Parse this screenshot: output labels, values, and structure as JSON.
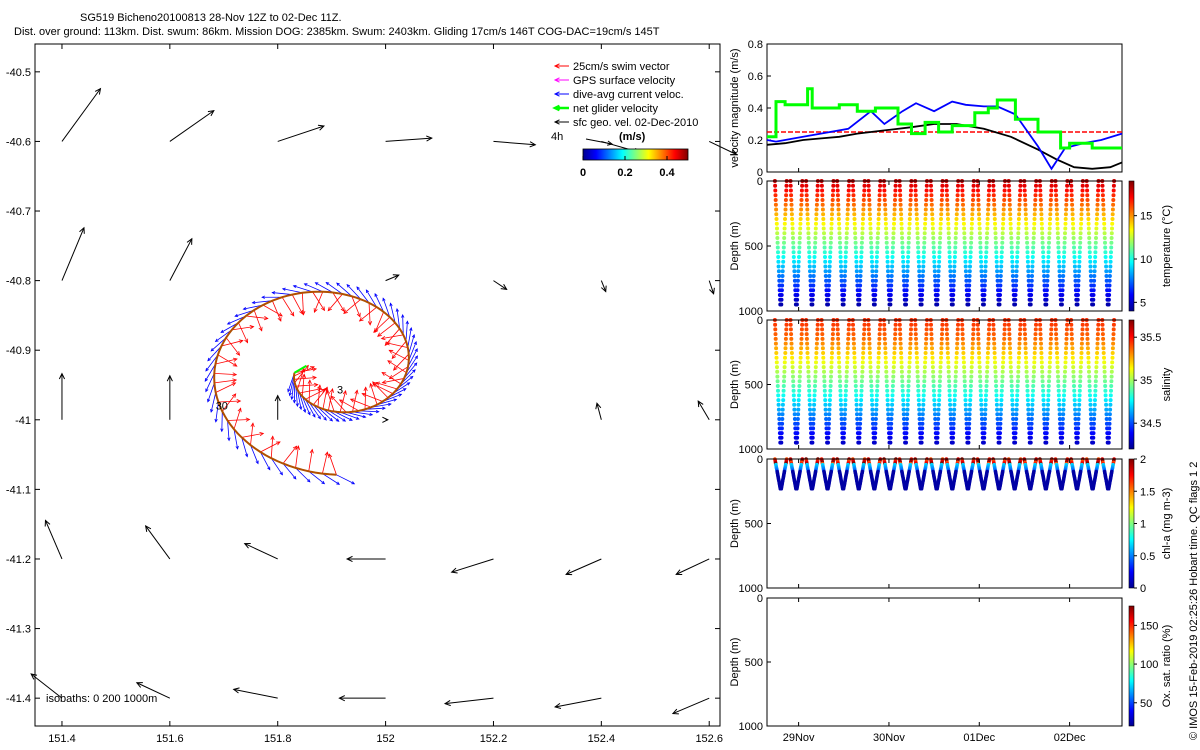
{
  "header": {
    "title_line1": "SG519 Bicheno20100813 28-Nov 12Z to 02-Dec 11Z.",
    "title_line2": "Dist. over ground: 113km. Dist. swum: 86km. Mission DOG: 2385km. Swum: 2403km. Gliding 17cm/s 146T COG-DAC=19cm/s 145T"
  },
  "footer": {
    "credit": "© IMOS 15-Feb-2019 02:25:26 Hobart time. QC flags 1  2"
  },
  "colors": {
    "swim": "#ff0000",
    "gps": "#ff00ff",
    "dac": "#0000ff",
    "net": "#00ff00",
    "sfc": "#000000",
    "track": "#b05000",
    "ref_line": "#ff0000"
  },
  "chart_data": [
    {
      "id": "map",
      "type": "scatter",
      "xlim": [
        151.35,
        152.62
      ],
      "ylim": [
        -41.44,
        -40.46
      ],
      "x_ticks": [
        151.4,
        151.6,
        151.8,
        152,
        152.2,
        152.4,
        152.6
      ],
      "x_tick_labels": [
        "151.4",
        "151.6",
        "151.8",
        "152",
        "152.2",
        "152.4",
        "152.6"
      ],
      "y_ticks": [
        -40.5,
        -40.6,
        -40.7,
        -40.8,
        -40.9,
        -41,
        -41.1,
        -41.2,
        -41.3,
        -41.4
      ],
      "y_tick_labels": [
        "-40.5",
        "-40.6",
        "-40.7",
        "-40.8",
        "-40.9",
        "-41",
        "-41.1",
        "-41.2",
        "-41.3",
        "-41.4"
      ],
      "legend": [
        {
          "label": "25cm/s swim vector",
          "color": "#ff0000"
        },
        {
          "label": "GPS surface velocity",
          "color": "#ff00ff"
        },
        {
          "label": "dive-avg current veloc.",
          "color": "#0000ff"
        },
        {
          "label": "net glider velocity",
          "color": "#00ff00"
        },
        {
          "label": "sfc geo. vel. 02-Dec-2010",
          "color": "#000000"
        }
      ],
      "legend_scale_label": "4h",
      "legend_scale_unit": "(m/s)",
      "colorbar": {
        "ticks": [
          "0",
          "0.2",
          "0.4"
        ],
        "range": [
          0,
          0.5
        ]
      },
      "isobath_label": "isobaths: 0   200   1000m",
      "day_labels": [
        {
          "text": "30",
          "lon": 151.685,
          "lat": -40.985
        },
        {
          "text": "3",
          "lon": 151.91,
          "lat": -40.962
        }
      ],
      "track_spiral": {
        "center_lon": 151.9,
        "center_lat": -40.925,
        "start_angle_deg": 190,
        "end_angle_deg": 632,
        "start_radius_deg_lon": 0.07,
        "end_radius_deg_lon": 0.255
      },
      "sfc_vectors": [
        {
          "lon": 151.4,
          "lat": -40.6,
          "u": 0.35,
          "v": 0.48
        },
        {
          "lon": 151.6,
          "lat": -40.6,
          "u": 0.4,
          "v": 0.28
        },
        {
          "lon": 151.8,
          "lat": -40.6,
          "u": 0.42,
          "v": 0.14
        },
        {
          "lon": 152,
          "lat": -40.6,
          "u": 0.42,
          "v": 0.03
        },
        {
          "lon": 152.2,
          "lat": -40.6,
          "u": 0.38,
          "v": -0.03
        },
        {
          "lon": 152.4,
          "lat": -40.6,
          "u": 0.35,
          "v": -0.1
        },
        {
          "lon": 152.6,
          "lat": -40.6,
          "u": 0.25,
          "v": -0.12
        },
        {
          "lon": 151.4,
          "lat": -40.8,
          "u": 0.2,
          "v": 0.48
        },
        {
          "lon": 151.6,
          "lat": -40.8,
          "u": 0.2,
          "v": 0.38
        },
        {
          "lon": 152,
          "lat": -40.8,
          "u": 0.12,
          "v": 0.05
        },
        {
          "lon": 152.2,
          "lat": -40.8,
          "u": 0.12,
          "v": -0.08
        },
        {
          "lon": 152.4,
          "lat": -40.8,
          "u": 0.04,
          "v": -0.1
        },
        {
          "lon": 152.6,
          "lat": -40.8,
          "u": 0.04,
          "v": -0.12
        },
        {
          "lon": 151.4,
          "lat": -41.0,
          "u": 0.0,
          "v": 0.42
        },
        {
          "lon": 151.6,
          "lat": -41.0,
          "u": 0.0,
          "v": 0.4
        },
        {
          "lon": 151.8,
          "lat": -41.0,
          "u": 0.0,
          "v": 0.22
        },
        {
          "lon": 152,
          "lat": -41.0,
          "u": 0.02,
          "v": 0.0
        },
        {
          "lon": 152.4,
          "lat": -41.0,
          "u": -0.04,
          "v": 0.15
        },
        {
          "lon": 152.6,
          "lat": -41.0,
          "u": -0.1,
          "v": 0.17
        },
        {
          "lon": 151.4,
          "lat": -41.2,
          "u": -0.15,
          "v": 0.35
        },
        {
          "lon": 151.6,
          "lat": -41.2,
          "u": -0.22,
          "v": 0.3
        },
        {
          "lon": 151.8,
          "lat": -41.2,
          "u": -0.3,
          "v": 0.14
        },
        {
          "lon": 152,
          "lat": -41.2,
          "u": -0.35,
          "v": 0.0
        },
        {
          "lon": 152.2,
          "lat": -41.2,
          "u": -0.38,
          "v": -0.12
        },
        {
          "lon": 152.4,
          "lat": -41.2,
          "u": -0.32,
          "v": -0.14
        },
        {
          "lon": 152.6,
          "lat": -41.2,
          "u": -0.3,
          "v": -0.14
        },
        {
          "lon": 151.4,
          "lat": -41.4,
          "u": -0.28,
          "v": 0.22
        },
        {
          "lon": 151.6,
          "lat": -41.4,
          "u": -0.3,
          "v": 0.14
        },
        {
          "lon": 151.8,
          "lat": -41.4,
          "u": -0.4,
          "v": 0.08
        },
        {
          "lon": 152,
          "lat": -41.4,
          "u": -0.42,
          "v": 0.0
        },
        {
          "lon": 152.2,
          "lat": -41.4,
          "u": -0.44,
          "v": -0.05
        },
        {
          "lon": 152.4,
          "lat": -41.4,
          "u": -0.42,
          "v": -0.08
        },
        {
          "lon": 152.6,
          "lat": -41.4,
          "u": -0.33,
          "v": -0.14
        }
      ]
    },
    {
      "id": "velocity",
      "type": "line",
      "ylabel": "velocity magnitude (m/s)",
      "ylim": [
        0,
        0.8
      ],
      "y_ticks": [
        0,
        0.2,
        0.4,
        0.6,
        0.8
      ],
      "y_tick_labels": [
        "0",
        "0.2",
        "0.4",
        "0.6",
        "0.8"
      ],
      "ref_value": 0.25,
      "series": [
        {
          "color": "#000000",
          "x": [
            0,
            0.2,
            0.4,
            0.6,
            0.8,
            1.0,
            1.3,
            1.6,
            1.85,
            2.1,
            2.4,
            2.7,
            3.0,
            3.2,
            3.4,
            3.6,
            3.8,
            3.93
          ],
          "y": [
            0.17,
            0.18,
            0.2,
            0.21,
            0.22,
            0.24,
            0.26,
            0.28,
            0.3,
            0.3,
            0.27,
            0.22,
            0.14,
            0.08,
            0.03,
            0.02,
            0.03,
            0.06
          ]
        },
        {
          "color": "#0000ff",
          "x": [
            0,
            0.1,
            0.4,
            0.9,
            1.15,
            1.3,
            1.5,
            1.65,
            1.85,
            2.05,
            2.2,
            2.4,
            2.55,
            2.75,
            3.0,
            3.15,
            3.3,
            3.5,
            3.7,
            3.93
          ],
          "y": [
            0.2,
            0.19,
            0.22,
            0.27,
            0.38,
            0.3,
            0.38,
            0.43,
            0.38,
            0.44,
            0.42,
            0.41,
            0.41,
            0.36,
            0.16,
            0.02,
            0.15,
            0.18,
            0.2,
            0.24
          ]
        },
        {
          "color": "#00ff00",
          "x": [
            0,
            0.1,
            0.1,
            0.2,
            0.2,
            0.45,
            0.45,
            0.5,
            0.5,
            0.8,
            0.8,
            1.0,
            1.0,
            1.2,
            1.2,
            1.45,
            1.45,
            1.6,
            1.6,
            1.75,
            1.75,
            1.9,
            1.9,
            2.05,
            2.05,
            2.3,
            2.3,
            2.45,
            2.45,
            2.55,
            2.55,
            2.75,
            2.75,
            3.0,
            3.0,
            3.25,
            3.25,
            3.35,
            3.35,
            3.6,
            3.6,
            3.93
          ],
          "y": [
            0.22,
            0.22,
            0.44,
            0.44,
            0.42,
            0.42,
            0.52,
            0.52,
            0.4,
            0.4,
            0.42,
            0.42,
            0.38,
            0.38,
            0.4,
            0.4,
            0.3,
            0.3,
            0.24,
            0.24,
            0.31,
            0.31,
            0.25,
            0.25,
            0.29,
            0.29,
            0.37,
            0.37,
            0.4,
            0.4,
            0.45,
            0.45,
            0.33,
            0.33,
            0.25,
            0.25,
            0.15,
            0.15,
            0.18,
            0.18,
            0.15,
            0.15
          ]
        }
      ]
    },
    {
      "id": "temperature",
      "type": "scatter",
      "ylabel": "Depth (m)",
      "ylim": [
        1000,
        0
      ],
      "y_ticks": [
        0,
        500,
        1000
      ],
      "y_tick_labels": [
        "0",
        "500",
        "1000"
      ],
      "colorbar_label": "temperature (°C)",
      "colorbar_range": [
        4,
        19
      ],
      "colorbar_ticks": [
        "5",
        "10",
        "15"
      ],
      "dives": 22,
      "max_depth": 950,
      "surface_value": 18,
      "deep_value": 4.5
    },
    {
      "id": "salinity",
      "type": "scatter",
      "ylabel": "Depth (m)",
      "ylim": [
        1000,
        0
      ],
      "y_ticks": [
        0,
        500,
        1000
      ],
      "y_tick_labels": [
        "0",
        "500",
        "1000"
      ],
      "colorbar_label": "salinity",
      "colorbar_range": [
        34.2,
        35.7
      ],
      "colorbar_ticks": [
        "34.5",
        "35",
        "35.5"
      ],
      "dives": 22,
      "max_depth": 950,
      "surface_value": 35.45,
      "deep_value": 34.3
    },
    {
      "id": "chla",
      "type": "scatter",
      "ylabel": "Depth (m)",
      "ylim": [
        1000,
        0
      ],
      "y_ticks": [
        0,
        500,
        1000
      ],
      "y_tick_labels": [
        "0",
        "500",
        "1000"
      ],
      "colorbar_label": "chl-a (mg m-3)",
      "colorbar_range": [
        0,
        2
      ],
      "colorbar_ticks": [
        "0",
        "0.5",
        "1",
        "1.5",
        "2"
      ],
      "dives": 22,
      "max_depth": 230
    },
    {
      "id": "oxygen",
      "type": "scatter",
      "ylabel": "Depth (m)",
      "ylim": [
        1000,
        0
      ],
      "y_ticks": [
        0,
        500,
        1000
      ],
      "y_tick_labels": [
        "0",
        "500",
        "1000"
      ],
      "colorbar_label": "Ox. sat. ratio (%)",
      "colorbar_range": [
        20,
        175
      ],
      "colorbar_ticks": [
        "50",
        "100",
        "150"
      ],
      "x_tick_labels": [
        "29Nov",
        "30Nov",
        "01Dec",
        "02Dec"
      ]
    }
  ]
}
